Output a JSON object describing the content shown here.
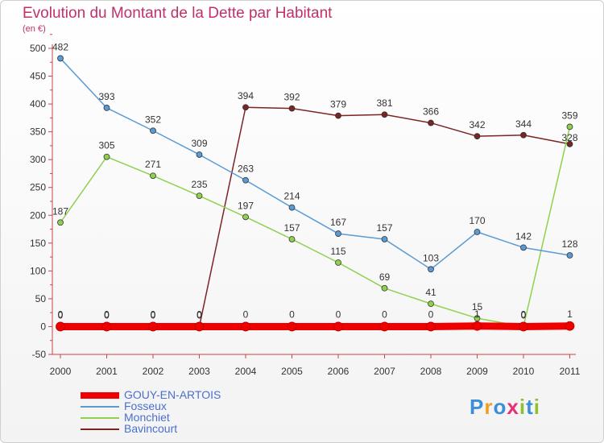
{
  "title": "Evolution du Montant de la Dette par Habitant",
  "subtitle": "(en €)",
  "logo": {
    "letters": [
      "P",
      "r",
      "o",
      "x",
      "i",
      "t",
      "i"
    ],
    "colors": [
      "#3a8fd8",
      "#f0a020",
      "#3a8fd8",
      "#e83070",
      "#90c030",
      "#3a8fd8",
      "#90c030"
    ]
  },
  "chart_data": {
    "type": "line",
    "x": [
      "2000",
      "2001",
      "2002",
      "2003",
      "2004",
      "2005",
      "2006",
      "2007",
      "2008",
      "2009",
      "2010",
      "2011"
    ],
    "ylim": [
      -50,
      500
    ],
    "yticks": [
      -50,
      0,
      50,
      100,
      150,
      200,
      250,
      300,
      350,
      400,
      450,
      500
    ],
    "grid": false,
    "legend_position": "bottom-left",
    "series": [
      {
        "name": "GOUY-EN-ARTOIS",
        "color": "#ee0000",
        "values": [
          0,
          0,
          0,
          0,
          0,
          0,
          0,
          0,
          0,
          1,
          0,
          1
        ],
        "labels": [
          "0",
          "0",
          "0",
          "0",
          "0",
          "0",
          "0",
          "0",
          "0",
          "1",
          "0",
          "1"
        ]
      },
      {
        "name": "Fosseux",
        "color": "#5a9bd5",
        "values": [
          482,
          393,
          352,
          309,
          263,
          214,
          167,
          157,
          103,
          170,
          142,
          128
        ],
        "labels": [
          "482",
          "393",
          "352",
          "309",
          "263",
          "214",
          "167",
          "157",
          "103",
          "170",
          "142",
          "128"
        ]
      },
      {
        "name": "Monchiet",
        "color": "#8fd14f",
        "values": [
          187,
          305,
          271,
          235,
          197,
          157,
          115,
          69,
          41,
          15,
          0,
          359
        ],
        "labels": [
          "187",
          "305",
          "271",
          "235",
          "197",
          "157",
          "115",
          "69",
          "41",
          "15",
          "0",
          "359"
        ]
      },
      {
        "name": "Bavincourt",
        "color": "#7b2424",
        "values": [
          0,
          0,
          0,
          0,
          394,
          392,
          379,
          381,
          366,
          342,
          344,
          328
        ],
        "labels": [
          "0",
          "0",
          "0",
          "0",
          "394",
          "392",
          "379",
          "381",
          "366",
          "342",
          "344",
          "328"
        ]
      }
    ]
  }
}
